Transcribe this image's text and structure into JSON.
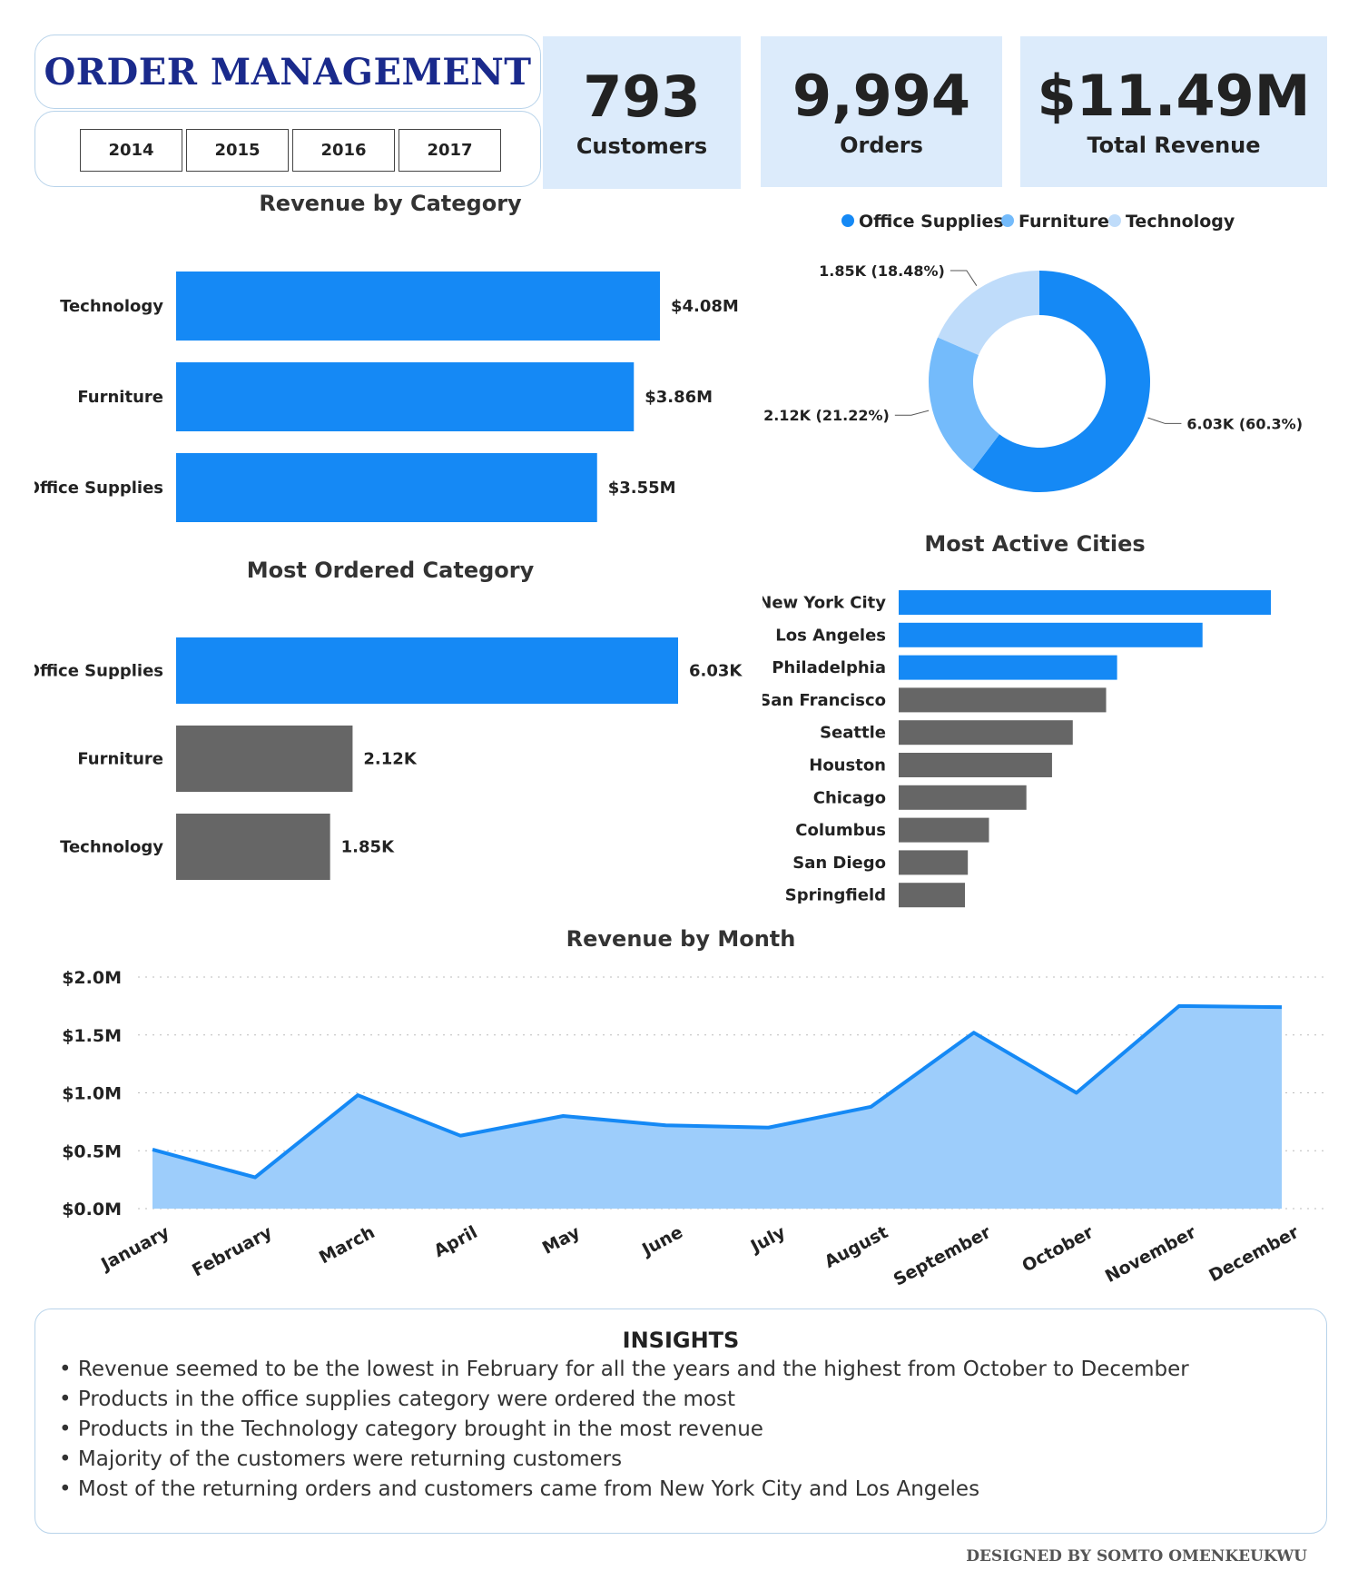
{
  "header": {
    "title": "ORDER MANAGEMENT",
    "years": [
      "2014",
      "2015",
      "2016",
      "2017"
    ]
  },
  "kpis": [
    {
      "value": "793",
      "label": "Customers"
    },
    {
      "value": "9,994",
      "label": "Orders"
    },
    {
      "value": "$11.49M",
      "label": "Total Revenue"
    }
  ],
  "colors": {
    "primary": "#1589f5",
    "mid": "#74bbfb",
    "light": "#bfdcfa",
    "gray": "#666666",
    "area": "#9dcdfb",
    "kpi_bg": "#dcebfb",
    "title_blue": "#1a2a8c"
  },
  "chart_data": [
    {
      "id": "revenue_by_category",
      "type": "bar",
      "orientation": "horizontal",
      "title": "Revenue by Category",
      "categories": [
        "Technology",
        "Furniture",
        "Office Supplies"
      ],
      "values": [
        4.08,
        3.86,
        3.55
      ],
      "labels": [
        "$4.08M",
        "$3.86M",
        "$3.55M"
      ],
      "unit": "$M"
    },
    {
      "id": "orders_share",
      "type": "pie",
      "donut": true,
      "legend_position": "top",
      "categories": [
        "Office Supplies",
        "Furniture",
        "Technology"
      ],
      "values": [
        6.03,
        2.12,
        1.85
      ],
      "labels": [
        "6.03K (60.3%)",
        "2.12K (21.22%)",
        "1.85K (18.48%)"
      ]
    },
    {
      "id": "most_ordered_category",
      "type": "bar",
      "orientation": "horizontal",
      "title": "Most Ordered Category",
      "categories": [
        "Office Supplies",
        "Furniture",
        "Technology"
      ],
      "values": [
        6.03,
        2.12,
        1.85
      ],
      "labels": [
        "6.03K",
        "2.12K",
        "1.85K"
      ],
      "highlight": [
        true,
        false,
        false
      ]
    },
    {
      "id": "most_active_cities",
      "type": "bar",
      "orientation": "horizontal",
      "title": "Most Active Cities",
      "categories": [
        "New York City",
        "Los Angeles",
        "Philadelphia",
        "San Francisco",
        "Seattle",
        "Houston",
        "Chicago",
        "Columbus",
        "San Diego",
        "Springfield"
      ],
      "values": [
        915,
        747,
        537,
        510,
        428,
        377,
        314,
        222,
        170,
        163
      ],
      "highlight": [
        true,
        true,
        true,
        false,
        false,
        false,
        false,
        false,
        false,
        false
      ]
    },
    {
      "id": "revenue_by_month",
      "type": "area",
      "title": "Revenue by Month",
      "categories": [
        "January",
        "February",
        "March",
        "April",
        "May",
        "June",
        "July",
        "August",
        "September",
        "October",
        "November",
        "December"
      ],
      "values": [
        0.51,
        0.27,
        0.98,
        0.63,
        0.8,
        0.72,
        0.7,
        0.88,
        1.52,
        1.0,
        1.75,
        1.74
      ],
      "ylim": [
        0,
        2.0
      ],
      "yticks": [
        0,
        0.5,
        1.0,
        1.5,
        2.0
      ],
      "ytick_labels": [
        "$0.0M",
        "$0.5M",
        "$1.0M",
        "$1.5M",
        "$2.0M"
      ],
      "grid": true
    }
  ],
  "insights": {
    "title": "INSIGHTS",
    "items": [
      "Revenue seemed to be the lowest in February for all the years and the highest from October to December",
      "Products in the office supplies category were ordered the most",
      "Products in the Technology category brought in the most revenue",
      "Majority of the customers were returning customers",
      "Most of the returning orders and customers came from New York City and Los Angeles"
    ]
  },
  "footer": {
    "credit": "DESIGNED BY SOMTO OMENKEUKWU"
  }
}
